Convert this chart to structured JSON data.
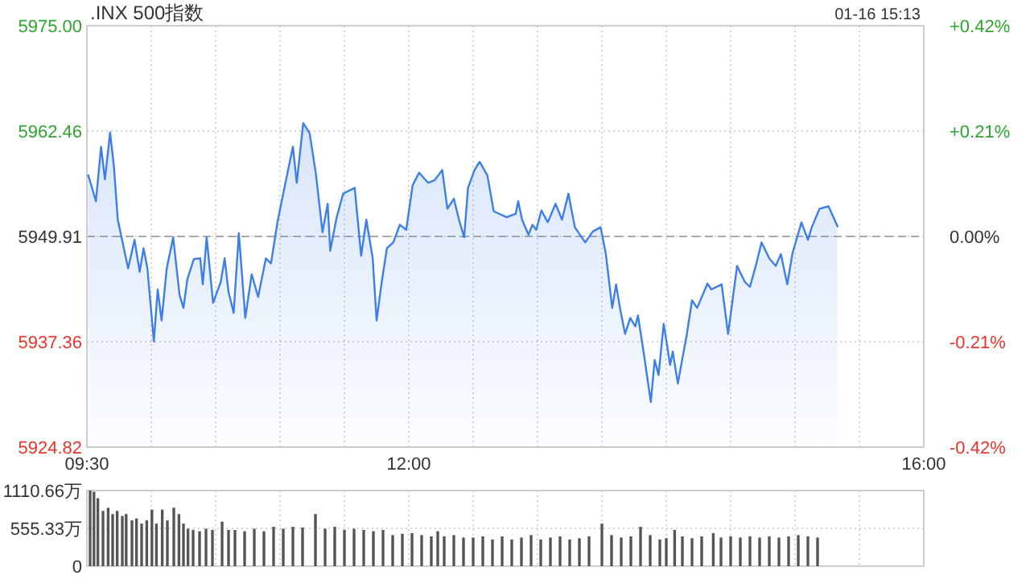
{
  "chart_data": [
    {
      "type": "area",
      "title": ".INX 500指数",
      "annotations": [
        "01-16 15:13"
      ],
      "x": [
        9.51,
        9.54,
        9.57,
        9.61,
        9.64,
        9.68,
        9.71,
        9.74,
        9.82,
        9.87,
        9.91,
        9.94,
        9.97,
        10.02,
        10.05,
        10.08,
        10.12,
        10.17,
        10.22,
        10.25,
        10.28,
        10.33,
        10.38,
        10.4,
        10.43,
        10.48,
        10.54,
        10.57,
        10.6,
        10.64,
        10.68,
        10.73,
        10.78,
        10.83,
        10.89,
        10.93,
        10.98,
        11.03,
        11.1,
        11.13,
        11.18,
        11.23,
        11.28,
        11.33,
        11.37,
        11.39,
        11.44,
        11.49,
        11.58,
        11.63,
        11.67,
        11.72,
        11.75,
        11.79,
        11.83,
        11.88,
        11.93,
        11.98,
        12.03,
        12.08,
        12.15,
        12.2,
        12.26,
        12.3,
        12.35,
        12.39,
        12.43,
        12.46,
        12.51,
        12.55,
        12.61,
        12.66,
        12.76,
        12.83,
        12.85,
        12.88,
        12.93,
        12.96,
        12.99,
        13.03,
        13.08,
        13.14,
        13.19,
        13.24,
        13.29,
        13.37,
        13.43,
        13.49,
        13.53,
        13.58,
        13.61,
        13.64,
        13.68,
        13.72,
        13.76,
        13.78,
        13.83,
        13.88,
        13.91,
        13.94,
        13.98,
        14.03,
        14.05,
        14.09,
        14.16,
        14.2,
        14.24,
        14.32,
        14.35,
        14.43,
        14.48,
        14.55,
        14.61,
        14.65,
        14.7,
        14.74,
        14.8,
        14.85,
        14.89,
        14.94,
        14.98,
        15.05,
        15.1,
        15.13,
        15.19,
        15.26,
        15.33
      ],
      "series": [
        {
          "color": "#3d7fe6",
          "values": [
            5957.2,
            5955.7,
            5954.1,
            5960.6,
            5956.7,
            5962.3,
            5958.2,
            5951.9,
            5946.1,
            5949.5,
            5945.7,
            5948.5,
            5946.1,
            5937.4,
            5943.6,
            5939.9,
            5946.1,
            5949.8,
            5942.9,
            5941.4,
            5944.8,
            5947.2,
            5947.3,
            5944.2,
            5949.8,
            5942.0,
            5944.5,
            5947.3,
            5943.3,
            5940.8,
            5950.3,
            5940.2,
            5945.4,
            5942.7,
            5947.3,
            5946.7,
            5951.6,
            5955.4,
            5960.6,
            5956.3,
            5963.4,
            5962.2,
            5957.2,
            5950.4,
            5953.8,
            5948.2,
            5952.2,
            5955.0,
            5955.7,
            5947.6,
            5951.9,
            5947.3,
            5939.9,
            5944.5,
            5948.5,
            5949.2,
            5951.3,
            5950.7,
            5956.0,
            5957.5,
            5956.3,
            5956.6,
            5957.8,
            5953.2,
            5954.4,
            5951.9,
            5949.8,
            5955.7,
            5957.8,
            5958.8,
            5957.2,
            5952.9,
            5952.2,
            5952.6,
            5954.1,
            5951.9,
            5950.1,
            5951.3,
            5950.7,
            5953.0,
            5951.6,
            5953.8,
            5951.9,
            5955.0,
            5951.0,
            5949.2,
            5950.5,
            5951.0,
            5947.9,
            5941.4,
            5944.2,
            5941.4,
            5938.3,
            5940.2,
            5939.2,
            5940.5,
            5935.5,
            5930.2,
            5935.2,
            5933.4,
            5939.5,
            5934.6,
            5936.2,
            5932.4,
            5938.3,
            5942.3,
            5941.4,
            5944.3,
            5943.6,
            5944.2,
            5938.3,
            5946.4,
            5944.5,
            5943.9,
            5946.7,
            5949.2,
            5947.3,
            5946.4,
            5947.8,
            5944.2,
            5947.9,
            5951.6,
            5949.5,
            5951.0,
            5953.2,
            5953.5,
            5951.1
          ]
        }
      ],
      "xlim": [
        9.5,
        16
      ],
      "xticks": [
        {
          "value": 9.5,
          "label": "09:30"
        },
        {
          "value": 10,
          "label": null
        },
        {
          "value": 10.5,
          "label": null
        },
        {
          "value": 11,
          "label": null
        },
        {
          "value": 11.5,
          "label": null
        },
        {
          "value": 12,
          "label": "12:00"
        },
        {
          "value": 12.5,
          "label": null
        },
        {
          "value": 13,
          "label": null
        },
        {
          "value": 13.5,
          "label": null
        },
        {
          "value": 14,
          "label": null
        },
        {
          "value": 14.5,
          "label": null
        },
        {
          "value": 15,
          "label": null
        },
        {
          "value": 15.5,
          "label": null
        },
        {
          "value": 16,
          "label": "16:00"
        }
      ],
      "ylim": [
        5924.82,
        5975
      ],
      "yticks": [
        {
          "value": 5924.82,
          "label": "5924.82"
        },
        {
          "value": 5937.36,
          "label": "5937.36"
        },
        {
          "value": 5949.91,
          "label": "5949.91"
        },
        {
          "value": 5962.46,
          "label": "5962.46"
        },
        {
          "value": 5975,
          "label": "5975.00"
        }
      ],
      "y2lim": [
        -0.42,
        0.42
      ],
      "y2ticks": [
        {
          "value": -0.42,
          "label": "-0.42%"
        },
        {
          "value": -0.21,
          "label": "-0.21%"
        },
        {
          "value": 0,
          "label": "0.00%"
        },
        {
          "value": 0.21,
          "label": "+0.21%"
        },
        {
          "value": 0.42,
          "label": "+0.42%"
        }
      ],
      "ref_lines": [
        {
          "axis": "y",
          "value": 5949.91,
          "line_style": "dashed",
          "color": "#aaaaaa"
        }
      ],
      "grid": true
    },
    {
      "type": "bar",
      "tick_labels": "y",
      "color": "#555555",
      "x": [
        9.525,
        9.555,
        9.585,
        9.625,
        9.665,
        9.7,
        9.735,
        9.775,
        9.805,
        9.85,
        9.885,
        9.925,
        9.965,
        10.005,
        10.04,
        10.085,
        10.125,
        10.175,
        10.215,
        10.25,
        10.285,
        10.325,
        10.375,
        10.425,
        10.475,
        10.55,
        10.6,
        10.65,
        10.725,
        10.8,
        10.875,
        10.95,
        11.025,
        11.1,
        11.175,
        11.275,
        11.35,
        11.425,
        11.5,
        11.575,
        11.65,
        11.725,
        11.8,
        11.875,
        11.95,
        12.025,
        12.1,
        12.175,
        12.225,
        12.275,
        12.35,
        12.425,
        12.5,
        12.575,
        12.65,
        12.725,
        12.8,
        12.875,
        12.95,
        13.025,
        13.1,
        13.175,
        13.25,
        13.325,
        13.4,
        13.5,
        13.575,
        13.65,
        13.725,
        13.8,
        13.875,
        13.95,
        14.0,
        14.065,
        14.125,
        14.2,
        14.275,
        14.365,
        14.425,
        14.5,
        14.575,
        14.65,
        14.725,
        14.8,
        14.875,
        14.95,
        15.025,
        15.1,
        15.175
      ],
      "values": [
        1110,
        1092,
        998,
        812,
        858,
        765,
        812,
        737,
        765,
        672,
        700,
        625,
        672,
        830,
        625,
        830,
        672,
        858,
        765,
        625,
        550,
        532,
        513,
        550,
        532,
        653,
        532,
        532,
        513,
        550,
        513,
        578,
        550,
        578,
        569,
        765,
        550,
        578,
        532,
        550,
        532,
        513,
        532,
        457,
        476,
        485,
        457,
        438,
        513,
        438,
        457,
        420,
        420,
        438,
        392,
        438,
        392,
        420,
        457,
        392,
        420,
        438,
        392,
        411,
        438,
        625,
        457,
        420,
        438,
        578,
        457,
        392,
        411,
        532,
        438,
        411,
        438,
        485,
        420,
        438,
        420,
        438,
        420,
        438,
        420,
        438,
        457,
        438,
        420
      ],
      "xlim": [
        9.5,
        16
      ],
      "xticks": [
        {
          "value": 9.5,
          "label": null
        },
        {
          "value": 10,
          "label": null
        },
        {
          "value": 10.5,
          "label": null
        },
        {
          "value": 11,
          "label": null
        },
        {
          "value": 11.5,
          "label": null
        },
        {
          "value": 12,
          "label": null
        },
        {
          "value": 12.5,
          "label": null
        },
        {
          "value": 13,
          "label": null
        },
        {
          "value": 13.5,
          "label": null
        },
        {
          "value": 14,
          "label": null
        },
        {
          "value": 14.5,
          "label": null
        },
        {
          "value": 15,
          "label": null
        },
        {
          "value": 15.5,
          "label": null
        },
        {
          "value": 16,
          "label": null
        }
      ],
      "ylim": [
        0,
        1110.66
      ],
      "yticks": [
        0,
        {
          "value": 555.33,
          "label": "555.33万"
        },
        {
          "value": 1110.66,
          "label": "1110.66万"
        }
      ],
      "grid": true
    }
  ]
}
